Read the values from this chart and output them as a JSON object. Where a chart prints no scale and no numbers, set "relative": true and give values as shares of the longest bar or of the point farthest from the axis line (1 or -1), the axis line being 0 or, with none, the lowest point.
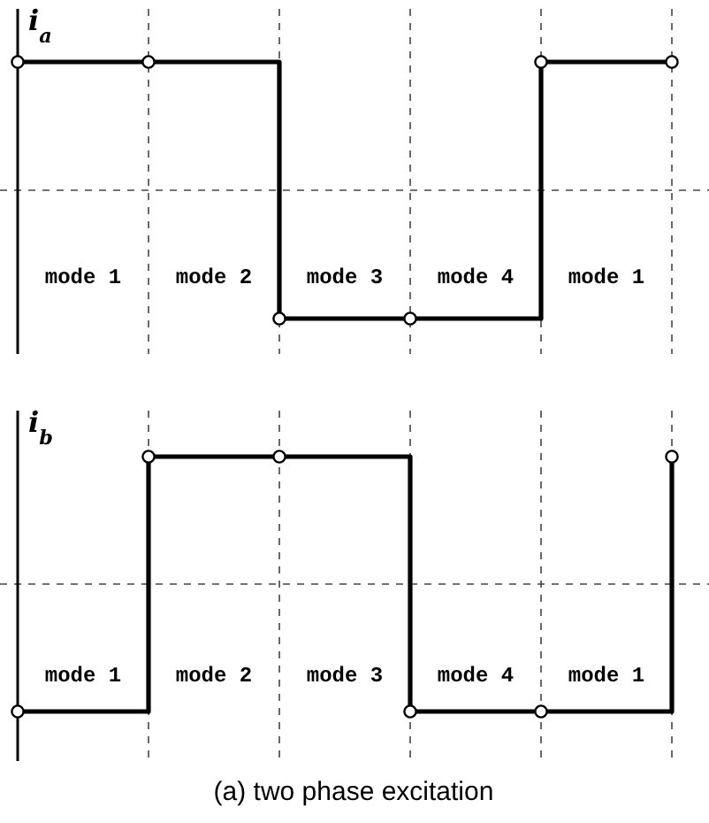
{
  "chart_data": [
    {
      "type": "step",
      "ylabel": "i$_{a}$",
      "relative": true,
      "grid": "x",
      "marker": "circle",
      "categories": [
        null,
        null,
        null,
        null,
        null,
        null
      ],
      "series": [
        {
          "color": "#000000",
          "values": [
            1,
            1,
            -1,
            -1,
            1,
            1
          ]
        }
      ],
      "annotations": [
        "mode 1",
        "mode 2",
        "mode 3",
        "mode 4",
        "mode 1"
      ]
    },
    {
      "type": "step",
      "ylabel": "i$_{b}$",
      "relative": true,
      "grid": "x",
      "marker": "circle",
      "categories": [
        null,
        null,
        null,
        null,
        null,
        null
      ],
      "series": [
        {
          "color": "#000000",
          "values": [
            -1,
            1,
            1,
            -1,
            -1,
            1
          ]
        }
      ],
      "annotations": [
        "mode 1",
        "mode 2",
        "mode 3",
        "mode 4",
        "mode 1"
      ],
      "title": "(a) two phase excitation"
    }
  ]
}
